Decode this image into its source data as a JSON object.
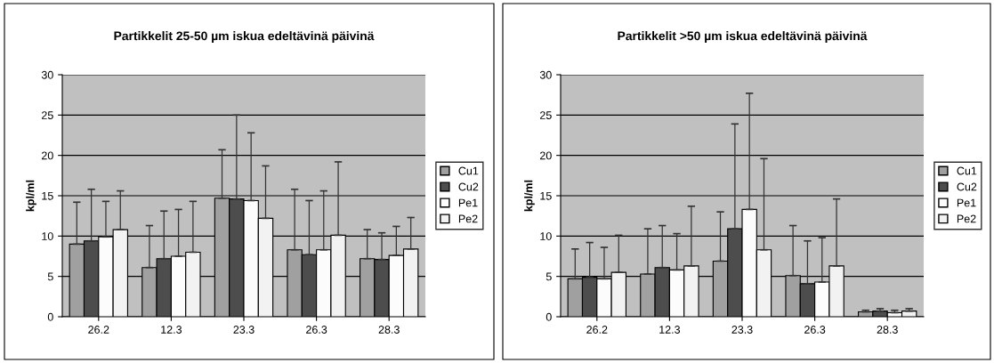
{
  "chart_data": [
    {
      "type": "bar",
      "title": "Partikkelit 25-50 µm iskua edeltävinä päivinä",
      "ylabel": "kpl/ml",
      "categories": [
        "26.2",
        "12.3",
        "23.3",
        "26.3",
        "28.3"
      ],
      "ylim": [
        0,
        30
      ],
      "yticks": [
        0,
        5,
        10,
        15,
        20,
        25,
        30
      ],
      "grid": "y",
      "legend": "right",
      "series": [
        {
          "name": "Cu1",
          "color": "#a0a0a0",
          "values": [
            9.0,
            6.1,
            14.7,
            8.3,
            7.2
          ],
          "errors": [
            [
              9.0,
              14.2
            ],
            [
              6.1,
              11.3
            ],
            [
              14.7,
              20.7
            ],
            [
              8.3,
              15.8
            ],
            [
              7.2,
              10.8
            ]
          ]
        },
        {
          "name": "Cu2",
          "color": "#4d4d4d",
          "values": [
            9.4,
            7.2,
            14.6,
            7.7,
            7.1
          ],
          "errors": [
            [
              9.4,
              15.8
            ],
            [
              7.2,
              13.1
            ],
            [
              14.6,
              25.0
            ],
            [
              7.7,
              14.4
            ],
            [
              7.1,
              10.4
            ]
          ]
        },
        {
          "name": "Pe1",
          "color": "#fcfcfc",
          "values": [
            9.9,
            7.5,
            14.4,
            8.3,
            7.6
          ],
          "errors": [
            [
              9.9,
              14.3
            ],
            [
              7.5,
              13.3
            ],
            [
              14.4,
              22.8
            ],
            [
              8.3,
              15.6
            ],
            [
              7.6,
              11.2
            ]
          ]
        },
        {
          "name": "Pe2",
          "color": "#f2f2f2",
          "values": [
            10.8,
            8.0,
            12.2,
            10.1,
            8.4
          ],
          "errors": [
            [
              10.8,
              15.6
            ],
            [
              8.0,
              14.3
            ],
            [
              12.2,
              18.7
            ],
            [
              10.1,
              19.2
            ],
            [
              8.4,
              12.3
            ]
          ]
        }
      ]
    },
    {
      "type": "bar",
      "title": "Partikkelit >50 µm iskua edeltävinä päivinä",
      "ylabel": "kpl/ml",
      "categories": [
        "26.2",
        "12.3",
        "23.3",
        "26.3",
        "28.3"
      ],
      "ylim": [
        0,
        30
      ],
      "yticks": [
        0,
        5,
        10,
        15,
        20,
        25,
        30
      ],
      "grid": "y",
      "legend": "right",
      "series": [
        {
          "name": "Cu1",
          "color": "#a0a0a0",
          "values": [
            4.7,
            5.3,
            6.9,
            5.1,
            0.6
          ],
          "errors": [
            [
              4.7,
              8.4
            ],
            [
              5.3,
              10.9
            ],
            [
              6.9,
              13.0
            ],
            [
              5.1,
              11.3
            ],
            [
              0.6,
              0.8
            ]
          ]
        },
        {
          "name": "Cu2",
          "color": "#4d4d4d",
          "values": [
            4.9,
            6.1,
            10.9,
            4.1,
            0.7
          ],
          "errors": [
            [
              4.9,
              9.2
            ],
            [
              6.1,
              11.3
            ],
            [
              10.9,
              23.9
            ],
            [
              4.1,
              9.4
            ],
            [
              0.7,
              1.0
            ]
          ]
        },
        {
          "name": "Pe1",
          "color": "#fcfcfc",
          "values": [
            4.7,
            5.8,
            13.3,
            4.3,
            0.5
          ],
          "errors": [
            [
              4.7,
              8.6
            ],
            [
              5.8,
              10.3
            ],
            [
              13.3,
              27.7
            ],
            [
              4.3,
              9.8
            ],
            [
              0.5,
              0.8
            ]
          ]
        },
        {
          "name": "Pe2",
          "color": "#f2f2f2",
          "values": [
            5.5,
            6.3,
            8.3,
            6.3,
            0.7
          ],
          "errors": [
            [
              5.5,
              10.1
            ],
            [
              6.3,
              13.7
            ],
            [
              8.3,
              19.6
            ],
            [
              6.3,
              14.6
            ],
            [
              0.7,
              1.0
            ]
          ]
        }
      ]
    }
  ]
}
